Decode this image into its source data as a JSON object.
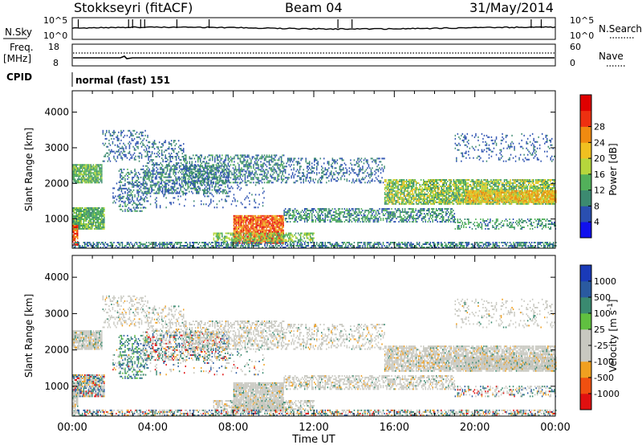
{
  "header": {
    "station": "Stokkseyri (fitACF)",
    "beam": "Beam 04",
    "date": "31/May/2014"
  },
  "panels": {
    "nsky_label": "N.Sky",
    "nsky_ticks": [
      "10^5",
      "10^0"
    ],
    "nsearch_label": "N.Search",
    "freq_label": "Freq.",
    "freq_unit": "[MHz]",
    "freq_ticks": [
      "18",
      "8"
    ],
    "nave_label": "Nave",
    "nave_ticks": [
      "60",
      "0"
    ],
    "cpid_label": "CPID",
    "cpid_value": "normal (fast) 151"
  },
  "colors": {
    "power": [
      "#1010ee",
      "#2a4fb0",
      "#3c8a70",
      "#52b05a",
      "#b6d63c",
      "#f0c020",
      "#f08a10",
      "#ee3010",
      "#e00000"
    ],
    "velocity": [
      "#e01010",
      "#f05010",
      "#f0a020",
      "#c8c8c0",
      "#c8c8c0",
      "#60c040",
      "#3a8a70",
      "#2a5aa0",
      "#1a3ab8"
    ]
  },
  "chart_data": [
    {
      "type": "heatmap",
      "quantity": "Power",
      "ylabel": "Slant Range [km]",
      "ylim": [
        180,
        4600
      ],
      "yticks": [
        1000,
        2000,
        3000,
        4000
      ],
      "xlim_hours": [
        0,
        24
      ],
      "colorbar_label": "Power [dB]",
      "colorbar_ticks": [
        4,
        8,
        12,
        16,
        20,
        24,
        28
      ],
      "colorbar_range": [
        0,
        32
      ]
    },
    {
      "type": "heatmap",
      "quantity": "Velocity",
      "ylabel": "Slant Range [km]",
      "ylim": [
        180,
        4600
      ],
      "yticks": [
        1000,
        2000,
        3000,
        4000
      ],
      "xlim_hours": [
        0,
        24
      ],
      "colorbar_label": "Velocity [m s^-1]",
      "colorbar_ticks": [
        "1000",
        "500",
        "100",
        "25",
        "-25",
        "-100",
        "-500",
        "-1000"
      ]
    }
  ],
  "xaxis": {
    "label": "Time UT",
    "ticks": [
      "00:00",
      "04:00",
      "08:00",
      "12:00",
      "16:00",
      "20:00",
      "00:00"
    ]
  }
}
